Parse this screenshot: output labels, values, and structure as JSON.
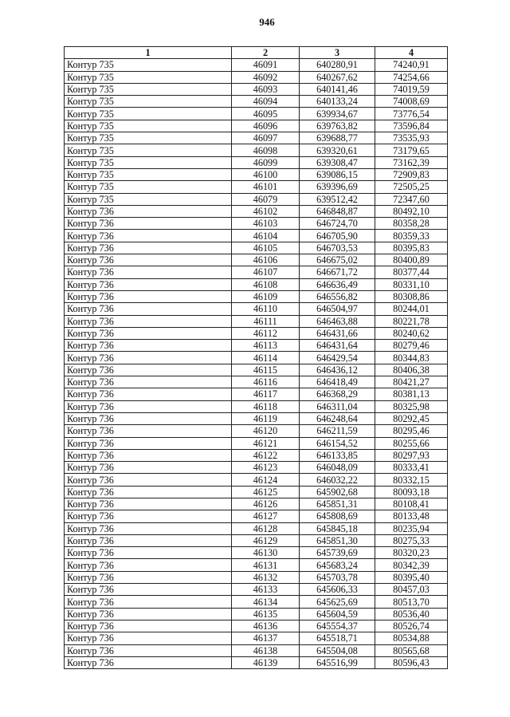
{
  "page_number": "946",
  "table": {
    "headers": [
      "1",
      "2",
      "3",
      "4"
    ],
    "rows": [
      [
        "Контур 735",
        "46091",
        "640280,91",
        "74240,91"
      ],
      [
        "Контур 735",
        "46092",
        "640267,62",
        "74254,66"
      ],
      [
        "Контур 735",
        "46093",
        "640141,46",
        "74019,59"
      ],
      [
        "Контур 735",
        "46094",
        "640133,24",
        "74008,69"
      ],
      [
        "Контур 735",
        "46095",
        "639934,67",
        "73776,54"
      ],
      [
        "Контур 735",
        "46096",
        "639763,82",
        "73596,84"
      ],
      [
        "Контур 735",
        "46097",
        "639688,77",
        "73535,93"
      ],
      [
        "Контур 735",
        "46098",
        "639320,61",
        "73179,65"
      ],
      [
        "Контур 735",
        "46099",
        "639308,47",
        "73162,39"
      ],
      [
        "Контур 735",
        "46100",
        "639086,15",
        "72909,83"
      ],
      [
        "Контур 735",
        "46101",
        "639396,69",
        "72505,25"
      ],
      [
        "Контур 735",
        "46079",
        "639512,42",
        "72347,60"
      ],
      [
        "Контур 736",
        "46102",
        "646848,87",
        "80492,10"
      ],
      [
        "Контур 736",
        "46103",
        "646724,70",
        "80358,28"
      ],
      [
        "Контур 736",
        "46104",
        "646705,90",
        "80359,33"
      ],
      [
        "Контур 736",
        "46105",
        "646703,53",
        "80395,83"
      ],
      [
        "Контур 736",
        "46106",
        "646675,02",
        "80400,89"
      ],
      [
        "Контур 736",
        "46107",
        "646671,72",
        "80377,44"
      ],
      [
        "Контур 736",
        "46108",
        "646636,49",
        "80331,10"
      ],
      [
        "Контур 736",
        "46109",
        "646556,82",
        "80308,86"
      ],
      [
        "Контур 736",
        "46110",
        "646504,97",
        "80244,01"
      ],
      [
        "Контур 736",
        "46111",
        "646463,88",
        "80221,78"
      ],
      [
        "Контур 736",
        "46112",
        "646431,66",
        "80240,62"
      ],
      [
        "Контур 736",
        "46113",
        "646431,64",
        "80279,46"
      ],
      [
        "Контур 736",
        "46114",
        "646429,54",
        "80344,83"
      ],
      [
        "Контур 736",
        "46115",
        "646436,12",
        "80406,38"
      ],
      [
        "Контур 736",
        "46116",
        "646418,49",
        "80421,27"
      ],
      [
        "Контур 736",
        "46117",
        "646368,29",
        "80381,13"
      ],
      [
        "Контур 736",
        "46118",
        "646311,04",
        "80325,98"
      ],
      [
        "Контур 736",
        "46119",
        "646248,64",
        "80292,45"
      ],
      [
        "Контур 736",
        "46120",
        "646211,59",
        "80295,46"
      ],
      [
        "Контур 736",
        "46121",
        "646154,52",
        "80255,66"
      ],
      [
        "Контур 736",
        "46122",
        "646133,85",
        "80297,93"
      ],
      [
        "Контур 736",
        "46123",
        "646048,09",
        "80333,41"
      ],
      [
        "Контур 736",
        "46124",
        "646032,22",
        "80332,15"
      ],
      [
        "Контур 736",
        "46125",
        "645902,68",
        "80093,18"
      ],
      [
        "Контур 736",
        "46126",
        "645851,31",
        "80108,41"
      ],
      [
        "Контур 736",
        "46127",
        "645808,69",
        "80133,48"
      ],
      [
        "Контур 736",
        "46128",
        "645845,18",
        "80235,94"
      ],
      [
        "Контур 736",
        "46129",
        "645851,30",
        "80275,33"
      ],
      [
        "Контур 736",
        "46130",
        "645739,69",
        "80320,23"
      ],
      [
        "Контур 736",
        "46131",
        "645683,24",
        "80342,39"
      ],
      [
        "Контур 736",
        "46132",
        "645703,78",
        "80395,40"
      ],
      [
        "Контур 736",
        "46133",
        "645606,33",
        "80457,03"
      ],
      [
        "Контур 736",
        "46134",
        "645625,69",
        "80513,70"
      ],
      [
        "Контур 736",
        "46135",
        "645604,59",
        "80536,40"
      ],
      [
        "Контур 736",
        "46136",
        "645554,37",
        "80526,74"
      ],
      [
        "Контур 736",
        "46137",
        "645518,71",
        "80534,88"
      ],
      [
        "Контур 736",
        "46138",
        "645504,08",
        "80565,68"
      ],
      [
        "Контур 736",
        "46139",
        "645516,99",
        "80596,43"
      ]
    ]
  }
}
